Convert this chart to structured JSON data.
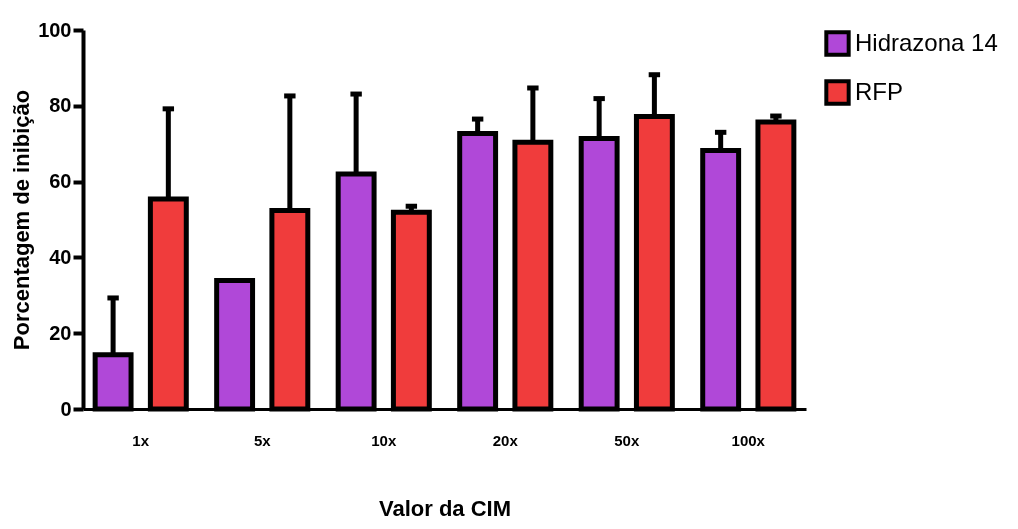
{
  "chart_data": {
    "type": "bar",
    "xlabel": "Valor da CIM",
    "ylabel": "Porcentagem de inibição",
    "categories": [
      "1x",
      "5x",
      "10x",
      "20x",
      "50x",
      "100x"
    ],
    "series": [
      {
        "name": "Hidrazona 14",
        "color": "#b048d8",
        "values": [
          14.3,
          33.9,
          62.0,
          72.7,
          71.4,
          68.2
        ],
        "errors": [
          [
            14.3,
            29.3
          ],
          null,
          [
            62.0,
            83.1
          ],
          [
            72.7,
            76.5
          ],
          [
            71.4,
            81.9
          ],
          [
            68.2,
            73.0
          ]
        ]
      },
      {
        "name": "RFP",
        "color": "#f03c3c",
        "values": [
          55.4,
          52.4,
          51.9,
          70.4,
          77.2,
          75.7
        ],
        "errors": [
          [
            55.4,
            79.2
          ],
          [
            52.4,
            82.6
          ],
          [
            51.9,
            53.5
          ],
          [
            70.4,
            84.7
          ],
          [
            77.2,
            88.2
          ],
          [
            75.7,
            77.3
          ]
        ]
      }
    ],
    "ylim": [
      0,
      100
    ],
    "yticks": [
      0,
      20,
      40,
      60,
      80,
      100
    ],
    "grid": false,
    "legend": "right"
  }
}
